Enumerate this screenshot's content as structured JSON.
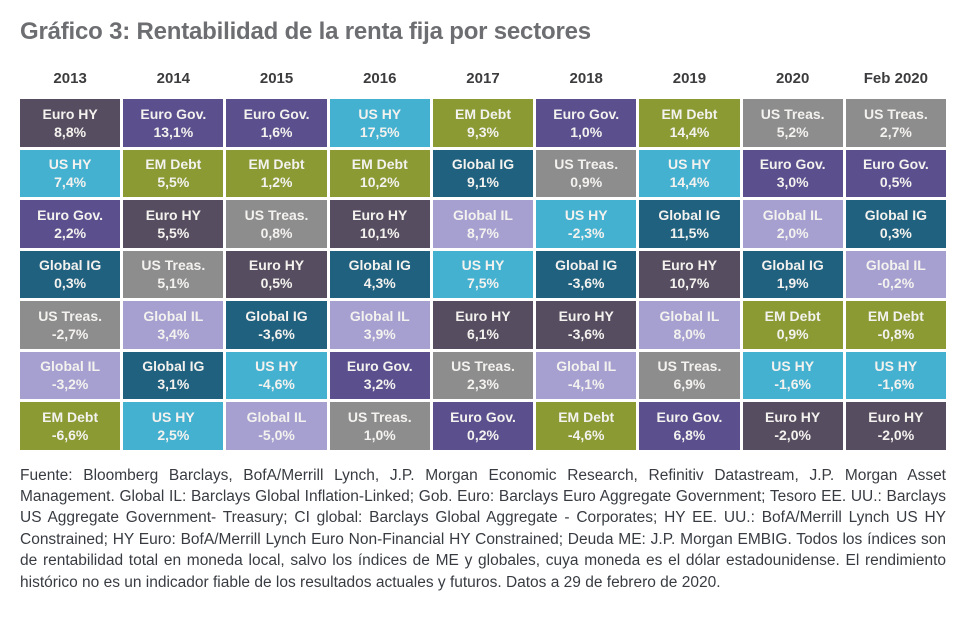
{
  "title": "Gráfico 3: Rentabilidad de la renta fija por sectores",
  "sector_colors": {
    "Euro HY": "#564e60",
    "Euro Gov.": "#5b4f8e",
    "EM Debt": "#8b9a33",
    "US HY": "#45b1d0",
    "US Treas.": "#8e8d8e",
    "Global IG": "#20617f",
    "Global IL": "#a5a0d0"
  },
  "chart_data": {
    "type": "table",
    "title": "Gráfico 3: Rentabilidad de la renta fija por sectores",
    "legend_position": "none",
    "grid": "quilt-of-returns, columns sorted descending by return",
    "columns": [
      "2013",
      "2014",
      "2015",
      "2016",
      "2017",
      "2018",
      "2019",
      "2020",
      "Feb 2020"
    ],
    "value_unit": "%",
    "cells": [
      [
        {
          "sector": "Euro HY",
          "label": "8,8%",
          "value": 8.8
        },
        {
          "sector": "US HY",
          "label": "7,4%",
          "value": 7.4
        },
        {
          "sector": "Euro Gov.",
          "label": "2,2%",
          "value": 2.2
        },
        {
          "sector": "Global IG",
          "label": "0,3%",
          "value": 0.3
        },
        {
          "sector": "US Treas.",
          "label": "-2,7%",
          "value": -2.7
        },
        {
          "sector": "Global IL",
          "label": "-3,2%",
          "value": -3.2
        },
        {
          "sector": "EM Debt",
          "label": "-6,6%",
          "value": -6.6
        }
      ],
      [
        {
          "sector": "Euro Gov.",
          "label": "13,1%",
          "value": 13.1
        },
        {
          "sector": "EM Debt",
          "label": "5,5%",
          "value": 5.5
        },
        {
          "sector": "Euro HY",
          "label": "5,5%",
          "value": 5.5
        },
        {
          "sector": "US Treas.",
          "label": "5,1%",
          "value": 5.1
        },
        {
          "sector": "Global IL",
          "label": "3,4%",
          "value": 3.4
        },
        {
          "sector": "Global IG",
          "label": "3,1%",
          "value": 3.1
        },
        {
          "sector": "US HY",
          "label": "2,5%",
          "value": 2.5
        }
      ],
      [
        {
          "sector": "Euro Gov.",
          "label": "1,6%",
          "value": 1.6
        },
        {
          "sector": "EM Debt",
          "label": "1,2%",
          "value": 1.2
        },
        {
          "sector": "US Treas.",
          "label": "0,8%",
          "value": 0.8
        },
        {
          "sector": "Euro HY",
          "label": "0,5%",
          "value": 0.5
        },
        {
          "sector": "Global IG",
          "label": "-3,6%",
          "value": -3.6
        },
        {
          "sector": "US HY",
          "label": "-4,6%",
          "value": -4.6
        },
        {
          "sector": "Global IL",
          "label": "-5,0%",
          "value": -5.0
        }
      ],
      [
        {
          "sector": "US HY",
          "label": "17,5%",
          "value": 17.5
        },
        {
          "sector": "EM Debt",
          "label": "10,2%",
          "value": 10.2
        },
        {
          "sector": "Euro HY",
          "label": "10,1%",
          "value": 10.1
        },
        {
          "sector": "Global IG",
          "label": "4,3%",
          "value": 4.3
        },
        {
          "sector": "Global IL",
          "label": "3,9%",
          "value": 3.9
        },
        {
          "sector": "Euro Gov.",
          "label": "3,2%",
          "value": 3.2
        },
        {
          "sector": "US Treas.",
          "label": "1,0%",
          "value": 1.0
        }
      ],
      [
        {
          "sector": "EM Debt",
          "label": "9,3%",
          "value": 9.3
        },
        {
          "sector": "Global IG",
          "label": "9,1%",
          "value": 9.1
        },
        {
          "sector": "Global IL",
          "label": "8,7%",
          "value": 8.7
        },
        {
          "sector": "US HY",
          "label": "7,5%",
          "value": 7.5
        },
        {
          "sector": "Euro HY",
          "label": "6,1%",
          "value": 6.1
        },
        {
          "sector": "US Treas.",
          "label": "2,3%",
          "value": 2.3
        },
        {
          "sector": "Euro Gov.",
          "label": "0,2%",
          "value": 0.2
        }
      ],
      [
        {
          "sector": "Euro Gov.",
          "label": "1,0%",
          "value": 1.0
        },
        {
          "sector": "US Treas.",
          "label": "0,9%",
          "value": 0.9
        },
        {
          "sector": "US HY",
          "label": "-2,3%",
          "value": -2.3
        },
        {
          "sector": "Global IG",
          "label": "-3,6%",
          "value": -3.6
        },
        {
          "sector": "Euro HY",
          "label": "-3,6%",
          "value": -3.6
        },
        {
          "sector": "Global IL",
          "label": "-4,1%",
          "value": -4.1
        },
        {
          "sector": "EM Debt",
          "label": "-4,6%",
          "value": -4.6
        }
      ],
      [
        {
          "sector": "EM Debt",
          "label": "14,4%",
          "value": 14.4
        },
        {
          "sector": "US HY",
          "label": "14,4%",
          "value": 14.4
        },
        {
          "sector": "Global IG",
          "label": "11,5%",
          "value": 11.5
        },
        {
          "sector": "Euro HY",
          "label": "10,7%",
          "value": 10.7
        },
        {
          "sector": "Global IL",
          "label": "8,0%",
          "value": 8.0
        },
        {
          "sector": "US Treas.",
          "label": "6,9%",
          "value": 6.9
        },
        {
          "sector": "Euro Gov.",
          "label": "6,8%",
          "value": 6.8
        }
      ],
      [
        {
          "sector": "US Treas.",
          "label": "5,2%",
          "value": 5.2
        },
        {
          "sector": "Euro Gov.",
          "label": "3,0%",
          "value": 3.0
        },
        {
          "sector": "Global IL",
          "label": "2,0%",
          "value": 2.0
        },
        {
          "sector": "Global IG",
          "label": "1,9%",
          "value": 1.9
        },
        {
          "sector": "EM Debt",
          "label": "0,9%",
          "value": 0.9
        },
        {
          "sector": "US HY",
          "label": "-1,6%",
          "value": -1.6
        },
        {
          "sector": "Euro HY",
          "label": "-2,0%",
          "value": -2.0
        }
      ],
      [
        {
          "sector": "US Treas.",
          "label": "2,7%",
          "value": 2.7
        },
        {
          "sector": "Euro Gov.",
          "label": "0,5%",
          "value": 0.5
        },
        {
          "sector": "Global IG",
          "label": "0,3%",
          "value": 0.3
        },
        {
          "sector": "Global IL",
          "label": "-0,2%",
          "value": -0.2
        },
        {
          "sector": "EM Debt",
          "label": "-0,8%",
          "value": -0.8
        },
        {
          "sector": "US HY",
          "label": "-1,6%",
          "value": -1.6
        },
        {
          "sector": "Euro HY",
          "label": "-2,0%",
          "value": -2.0
        }
      ]
    ]
  },
  "footnote": "Fuente: Bloomberg Barclays, BofA/Merrill Lynch, J.P. Morgan Economic Research, Refinitiv Datastream, J.P. Morgan Asset Management. Global IL: Barclays Global Inflation-Linked; Gob. Euro: Barclays Euro Aggregate Government; Tesoro EE. UU.: Barclays US Aggregate Government- Treasury; CI global: Barclays Global Aggregate - Corporates; HY EE. UU.: BofA/Merrill Lynch US HY Constrained; HY Euro: BofA/Merrill Lynch Euro Non-Financial HY Constrained; Deuda ME: J.P. Morgan EMBIG. Todos los índices son de rentabilidad total en moneda local, salvo los índices de ME y globales, cuya moneda es el dólar estadounidense. El rendimiento histórico no es un indicador fiable de los resultados actuales y futuros. Datos a 29 de febrero de 2020."
}
